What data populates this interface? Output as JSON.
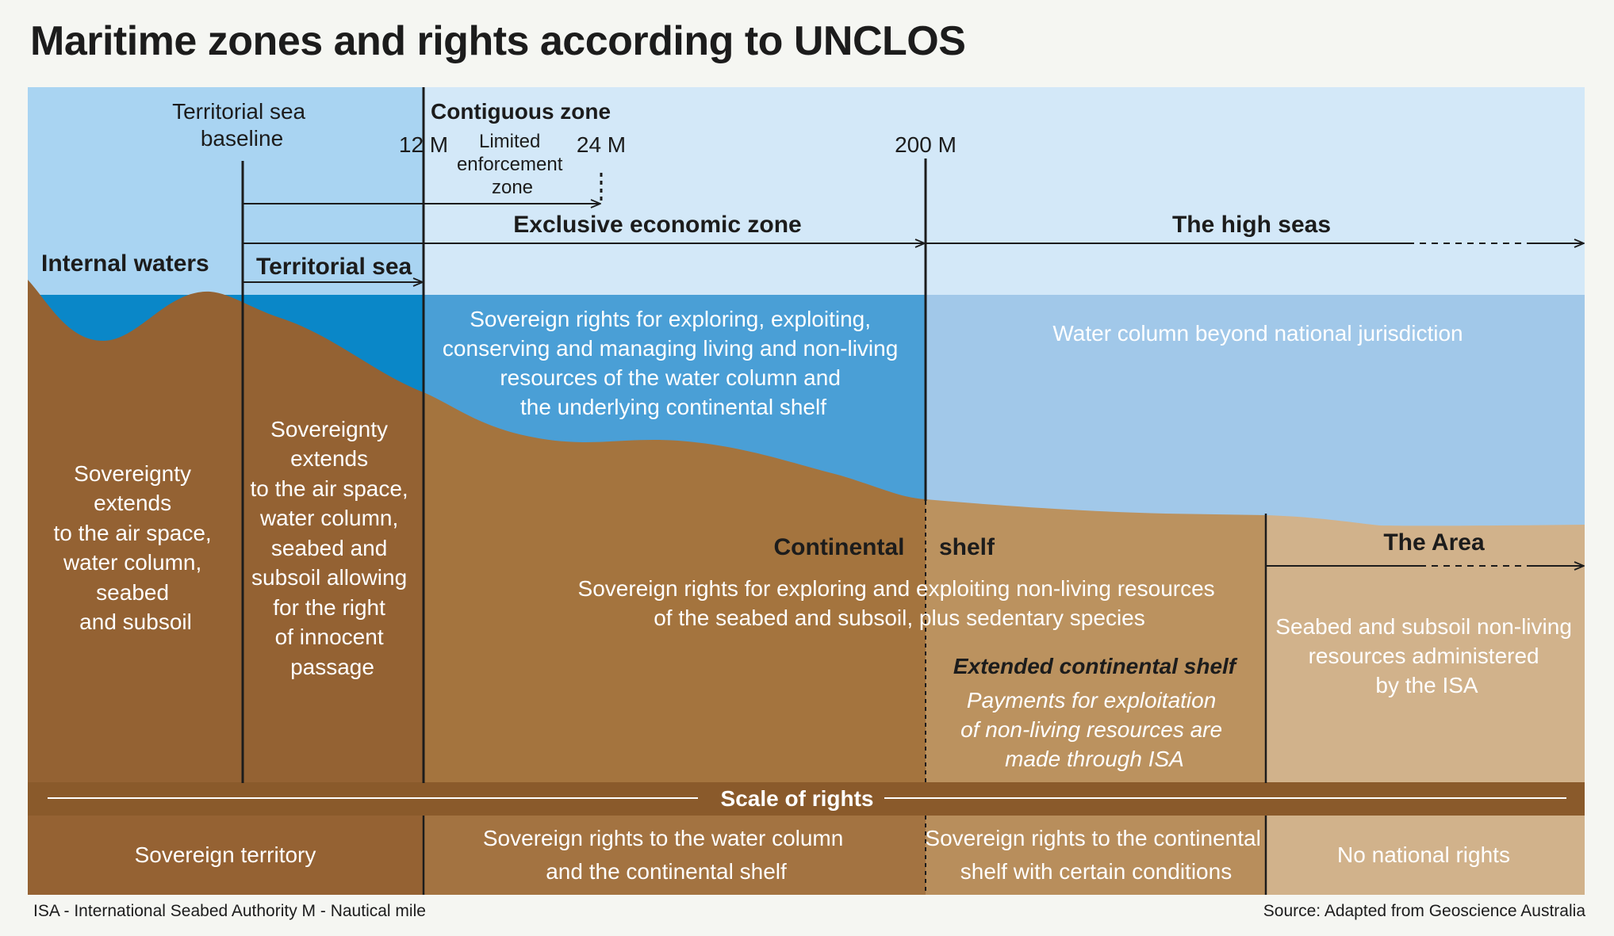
{
  "title": "Maritime zones and rights according to UNCLOS",
  "colors": {
    "sky_internal": "#a9d4f2",
    "sky_outer": "#d3e8f8",
    "water_coast": "#0a87c8",
    "water_eez": "#4a9fd6",
    "water_high_seas": "#a1c8e9",
    "seabed_coast": "#946233",
    "seabed_eez": "#a4743e",
    "seabed_extended": "#bb925f",
    "seabed_area": "#d1b28b",
    "scale_bar": "#8a5a2b",
    "rights_sovereign": "#956233",
    "rights_eez": "#a37341",
    "rights_extended": "#b88e5c",
    "rights_none": "#d1b28b",
    "ink": "#1c1c1c",
    "light_text": "#ffffff"
  },
  "labels": {
    "baseline": [
      "Territorial sea",
      "baseline"
    ],
    "contiguous_zone": "Contiguous zone",
    "m12": "12 M",
    "m24": "24 M",
    "m200": "200 M",
    "limited_enforcement": [
      "Limited",
      "enforcement",
      "zone"
    ],
    "eez": "Exclusive economic zone",
    "high_seas": "The high seas",
    "internal_waters": "Internal waters",
    "territorial_sea": "Territorial sea",
    "eez_rights": [
      "Sovereign rights for exploring, exploiting,",
      "conserving and managing living and non-living",
      "resources of the water column and",
      "the underlying continental shelf"
    ],
    "water_column_beyond": "Water column beyond national jurisdiction",
    "internal_sovereignty": [
      "Sovereignty",
      "extends",
      "to the air space,",
      "water column,",
      "seabed",
      "and subsoil"
    ],
    "territorial_sovereignty": [
      "Sovereignty",
      "extends",
      "to the air space,",
      "water column,",
      "seabed and",
      "subsoil allowing",
      "for the right",
      "of innocent",
      "passage"
    ],
    "continental": "Continental",
    "shelf": "shelf",
    "shelf_rights": [
      "Sovereign rights for exploring and exploiting non-living resources",
      "of the seabed and subsoil, plus sedentary species"
    ],
    "extended_shelf": "Extended continental shelf",
    "extended_payments": [
      "Payments for exploitation",
      "of non-living resources are",
      "made through ISA"
    ],
    "the_area": "The Area",
    "area_resources": [
      "Seabed and subsoil non-living",
      "resources administered",
      "by the ISA"
    ],
    "scale_of_rights": "Scale of rights"
  },
  "rights_row": {
    "sovereign_territory": "Sovereign territory",
    "eez": [
      "Sovereign rights to the water column",
      "and the continental  shelf"
    ],
    "extended": [
      "Sovereign rights to the continental",
      "shelf with certain conditions"
    ],
    "none": "No national rights"
  },
  "footer": {
    "abbreviations": "ISA - International Seabed  Authority    M - Nautical mile",
    "source": "Source: Adapted from Geoscience Australia"
  }
}
